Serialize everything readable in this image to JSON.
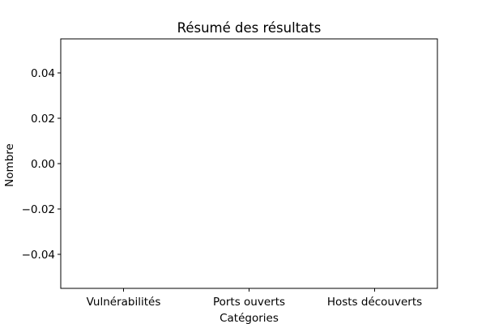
{
  "chart_data": {
    "type": "bar",
    "title": "Résumé des résultats",
    "xlabel": "Catégories",
    "ylabel": "Nombre",
    "categories": [
      "Vulnérabilités",
      "Ports ouverts",
      "Hosts découverts"
    ],
    "values": [
      0,
      0,
      0
    ],
    "ylim": [
      -0.055,
      0.055
    ],
    "yticks": [
      -0.04,
      -0.02,
      0.0,
      0.02,
      0.04
    ],
    "ytick_labels": [
      "−0.04",
      "−0.02",
      "0.00",
      "0.02",
      "0.04"
    ],
    "grid": false,
    "bar_color": "#1f77b4"
  }
}
